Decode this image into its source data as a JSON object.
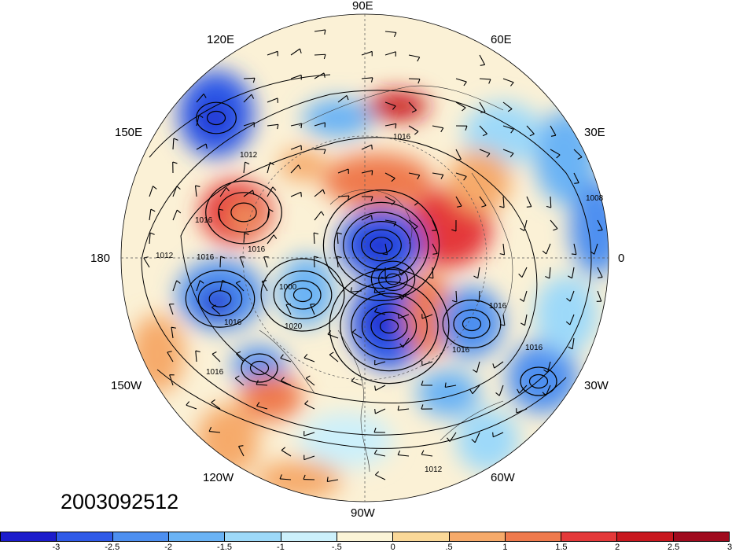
{
  "map": {
    "lon_labels": {
      "top": "90E",
      "upper_left": "120E",
      "upper_right": "60E",
      "mid_upper_left": "150E",
      "mid_upper_right": "30E",
      "left": "180",
      "right": "0",
      "mid_lower_left": "150W",
      "mid_lower_right": "30W",
      "lower_left": "120W",
      "lower_right": "60W",
      "bottom": "90W"
    },
    "isobar_labels": [
      "1016",
      "1012",
      "1016",
      "1008",
      "1016",
      "1012",
      "1016",
      "1000",
      "1016",
      "1020",
      "1016",
      "1016",
      "1016",
      "1016",
      "1012"
    ],
    "colors": {
      "negative_strong": "#1f1fd8",
      "negative_weak": "#cdeef9",
      "positive_weak": "#faebc4",
      "positive_strong": "#a00b1e",
      "contour": "#000000"
    }
  },
  "datestamp": "2003092512",
  "colorbar": {
    "colors": [
      "#1c1ccc",
      "#2f5ae8",
      "#4d8ff0",
      "#6ab3f5",
      "#9dd9f9",
      "#ccf0fb",
      "#fbf4d7",
      "#fad898",
      "#f6aa6a",
      "#ef7a4d",
      "#e4393a",
      "#c8181f",
      "#a00b1e"
    ],
    "ticks": [
      "-3",
      "-2.5",
      "-2",
      "-1.5",
      "-1",
      "-.5",
      "0",
      ".5",
      "1",
      "1.5",
      "2",
      "2.5",
      "3"
    ]
  }
}
